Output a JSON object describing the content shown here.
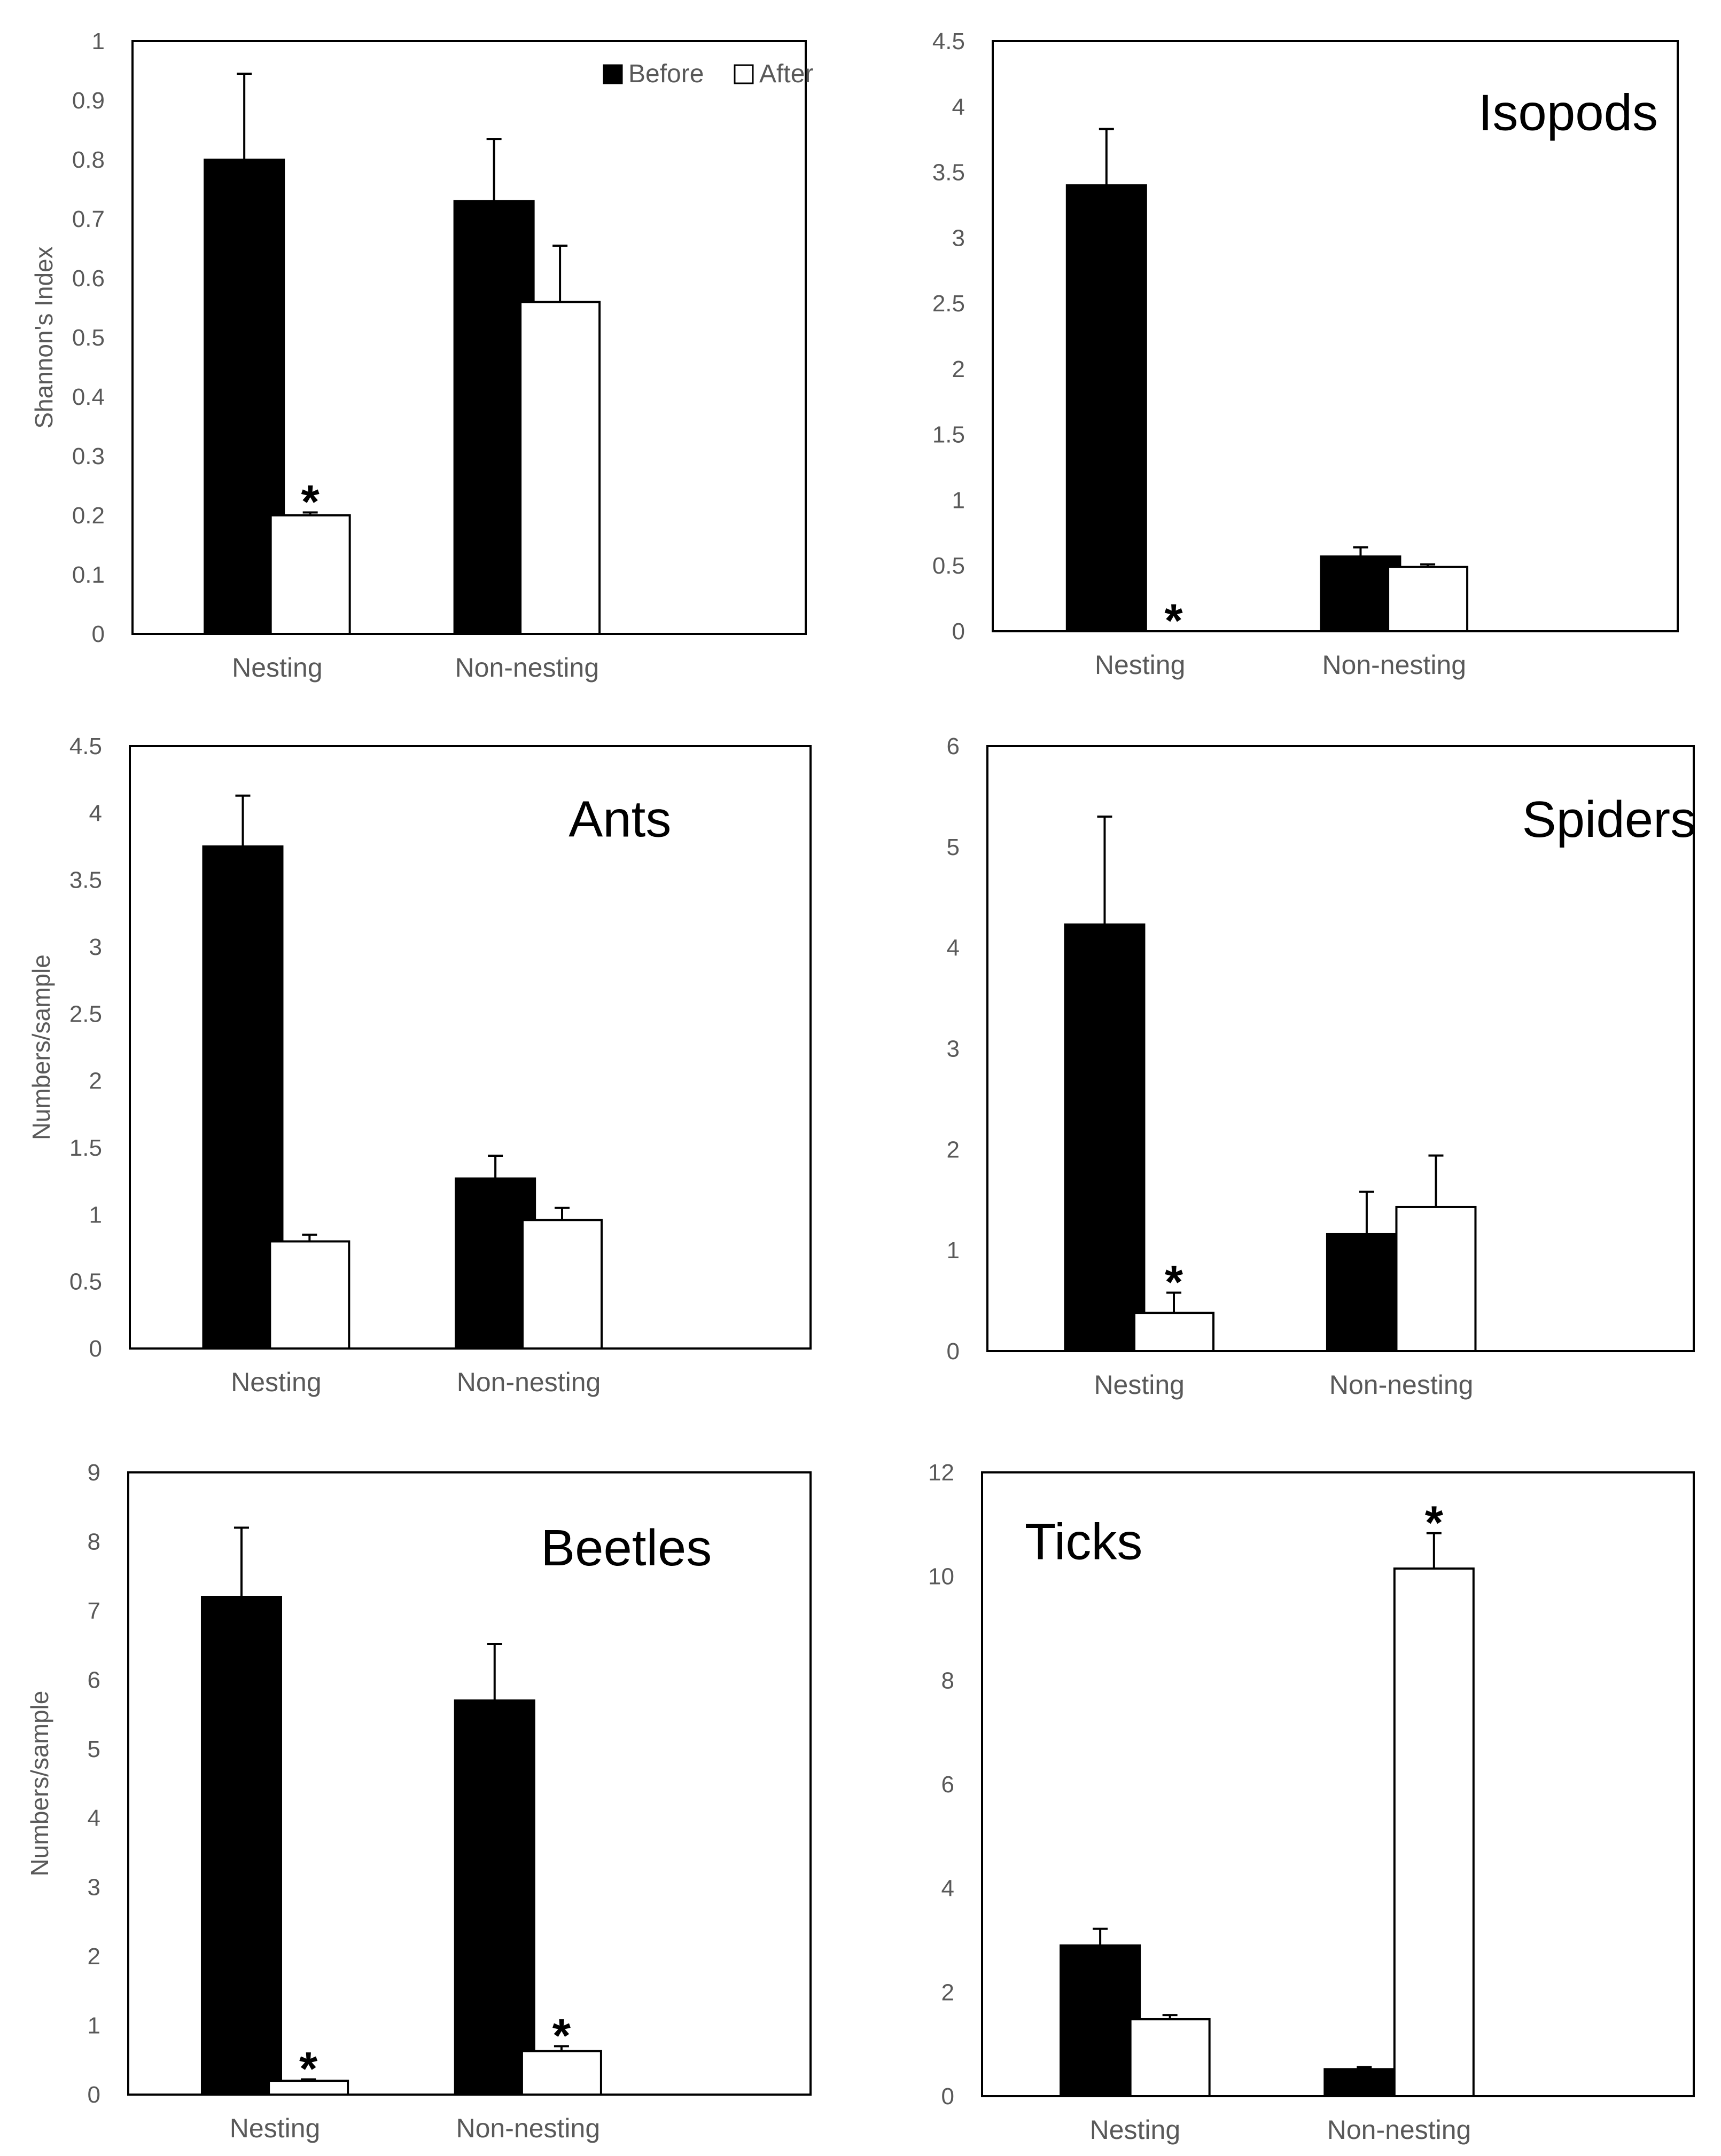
{
  "colors": {
    "before": "#000000",
    "after": "#ffffff",
    "frame": "#000000",
    "text": "#595959"
  },
  "chart_data": [
    {
      "type": "bar",
      "title": "",
      "ylabel": "Shannon's Index",
      "xlabel": "",
      "categories": [
        "Nesting",
        "Non-nesting"
      ],
      "ylim": [
        0,
        1
      ],
      "yticks": [
        "0",
        "0.1",
        "0.2",
        "0.3",
        "0.4",
        "0.5",
        "0.6",
        "0.7",
        "0.8",
        "0.9",
        "1"
      ],
      "legend": {
        "position": "top-right",
        "entries": [
          "Before",
          "After"
        ]
      },
      "series": [
        {
          "name": "Before",
          "values": [
            0.8,
            0.73
          ],
          "errors": [
            0.145,
            0.105
          ]
        },
        {
          "name": "After",
          "values": [
            0.2,
            0.56
          ],
          "errors": [
            0.005,
            0.095
          ]
        }
      ],
      "significance": [
        {
          "category": "Nesting",
          "series": "After",
          "mark": "*"
        }
      ]
    },
    {
      "type": "bar",
      "title": "Isopods",
      "ylabel": "",
      "xlabel": "",
      "categories": [
        "Nesting",
        "Non-nesting"
      ],
      "ylim": [
        0,
        4.5
      ],
      "yticks": [
        "0",
        "0.5",
        "1",
        "1.5",
        "2",
        "2.5",
        "3",
        "3.5",
        "4",
        "4.5"
      ],
      "series": [
        {
          "values": [
            3.4,
            0.57
          ],
          "errors": [
            0.43,
            0.07
          ]
        },
        {
          "values": [
            0,
            0.49
          ],
          "errors": [
            0,
            0.02
          ]
        }
      ],
      "significance": [
        {
          "category": "Nesting",
          "series": "After",
          "mark": "*"
        }
      ]
    },
    {
      "type": "bar",
      "title": "Ants",
      "ylabel": "Numbers/sample",
      "xlabel": "",
      "categories": [
        "Nesting",
        "Non-nesting"
      ],
      "ylim": [
        0,
        4.5
      ],
      "yticks": [
        "0",
        "0.5",
        "1",
        "1.5",
        "2",
        "2.5",
        "3",
        "3.5",
        "4",
        "4.5"
      ],
      "series": [
        {
          "values": [
            3.75,
            1.27
          ],
          "errors": [
            0.38,
            0.17
          ]
        },
        {
          "values": [
            0.8,
            0.96
          ],
          "errors": [
            0.05,
            0.09
          ]
        }
      ],
      "significance": []
    },
    {
      "type": "bar",
      "title": "Spiders",
      "ylabel": "",
      "xlabel": "",
      "categories": [
        "Nesting",
        "Non-nesting"
      ],
      "ylim": [
        0,
        6
      ],
      "yticks": [
        "0",
        "1",
        "2",
        "3",
        "4",
        "5",
        "6"
      ],
      "series": [
        {
          "values": [
            4.23,
            1.16
          ],
          "errors": [
            1.07,
            0.42
          ]
        },
        {
          "values": [
            0.38,
            1.43
          ],
          "errors": [
            0.2,
            0.51
          ]
        }
      ],
      "significance": [
        {
          "category": "Nesting",
          "series": "After",
          "mark": "*"
        }
      ]
    },
    {
      "type": "bar",
      "title": "Beetles",
      "ylabel": "Numbers/sample",
      "xlabel": "",
      "categories": [
        "Nesting",
        "Non-nesting"
      ],
      "ylim": [
        0,
        9
      ],
      "yticks": [
        "0",
        "1",
        "2",
        "3",
        "4",
        "5",
        "6",
        "7",
        "8",
        "9"
      ],
      "series": [
        {
          "values": [
            7.2,
            5.7
          ],
          "errors": [
            1.0,
            0.82
          ]
        },
        {
          "values": [
            0.2,
            0.63
          ],
          "errors": [
            0.02,
            0.07
          ]
        }
      ],
      "significance": [
        {
          "category": "Nesting",
          "series": "After",
          "mark": "*"
        },
        {
          "category": "Non-nesting",
          "series": "After",
          "mark": "*"
        }
      ]
    },
    {
      "type": "bar",
      "title": "Ticks",
      "ylabel": "",
      "xlabel": "",
      "categories": [
        "Nesting",
        "Non-nesting"
      ],
      "ylim": [
        0,
        12
      ],
      "yticks": [
        "0",
        "2",
        "4",
        "6",
        "8",
        "10",
        "12"
      ],
      "series": [
        {
          "values": [
            2.9,
            0.52
          ],
          "errors": [
            0.32,
            0.04
          ]
        },
        {
          "values": [
            1.48,
            10.15
          ],
          "errors": [
            0.08,
            0.68
          ]
        }
      ],
      "significance": [
        {
          "category": "Non-nesting",
          "series": "After",
          "mark": "*"
        }
      ]
    }
  ]
}
